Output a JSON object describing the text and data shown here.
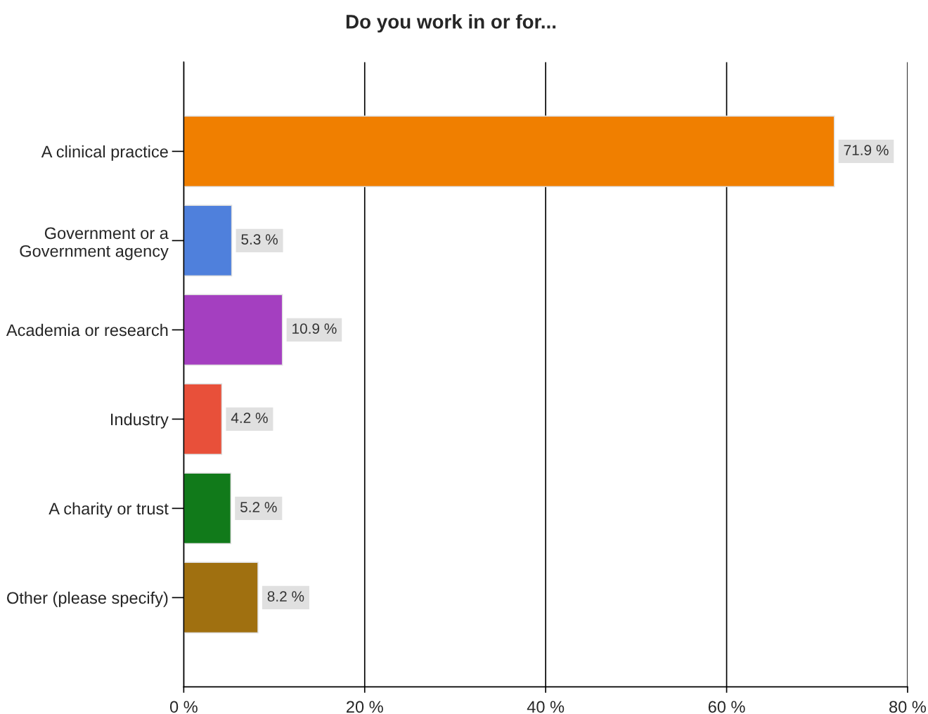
{
  "chart_data": {
    "type": "bar",
    "orientation": "horizontal",
    "title": "Do you work in or for...",
    "categories": [
      "A clinical practice",
      "Government or a\nGovernment agency",
      "Academia or research",
      "Industry",
      "A charity or trust",
      "Other (please specify)"
    ],
    "values": [
      71.9,
      5.3,
      10.9,
      4.2,
      5.2,
      8.2
    ],
    "value_labels": [
      "71.9 %",
      "5.3 %",
      "10.9 %",
      "4.2 %",
      "5.2 %",
      "8.2 %"
    ],
    "colors": [
      "#f07f00",
      "#4f80dc",
      "#a43fc0",
      "#e8503a",
      "#117a1a",
      "#a07010"
    ],
    "xlim": [
      0,
      80
    ],
    "xticks": [
      {
        "value": 0,
        "label": "0 %"
      },
      {
        "value": 20,
        "label": "20 %"
      },
      {
        "value": 40,
        "label": "40 %"
      },
      {
        "value": 60,
        "label": "60 %"
      },
      {
        "value": 80,
        "label": "80 %"
      }
    ],
    "grid": "x",
    "legend": false
  }
}
